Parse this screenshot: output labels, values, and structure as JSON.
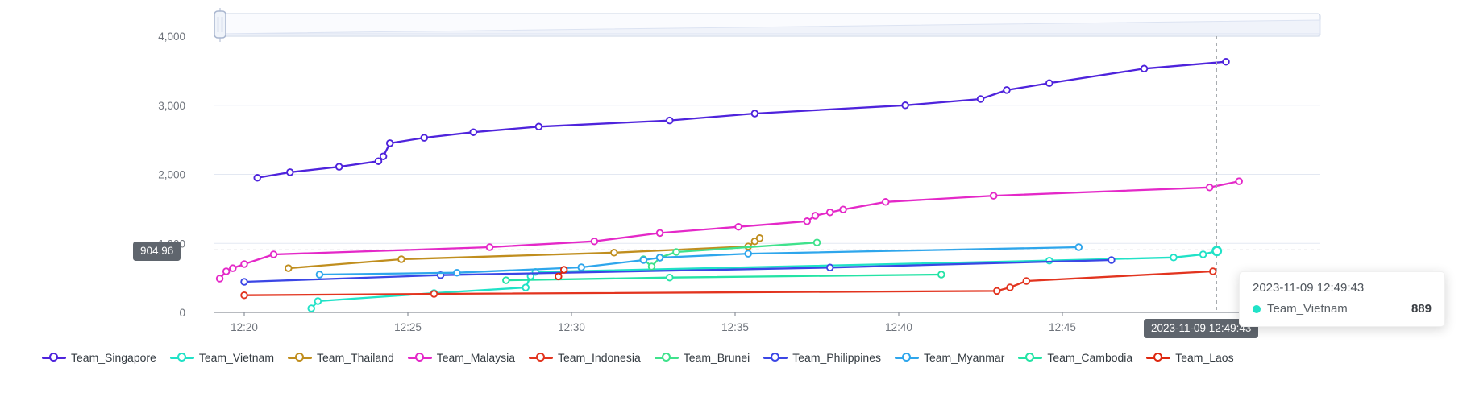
{
  "chart_data": {
    "type": "line",
    "title": "",
    "x_axis": {
      "unit": "time (HH:MM, minutes after 12:00)",
      "tick_minutes": [
        20,
        25,
        30,
        35,
        40,
        45
      ],
      "tick_labels": [
        "12:20",
        "12:25",
        "12:30",
        "12:35",
        "12:40",
        "12:45"
      ]
    },
    "y_axis": {
      "min": 0,
      "max": 4000,
      "ticks": [
        {
          "value": 0,
          "label": "0"
        },
        {
          "value": 1000,
          "label": "1,000"
        },
        {
          "value": 2000,
          "label": "2,000"
        },
        {
          "value": 3000,
          "label": "3,000"
        },
        {
          "value": 4000,
          "label": "4,000"
        }
      ]
    },
    "legend_position": "bottom",
    "grid": true,
    "series": [
      {
        "name": "Team_Singapore",
        "color": "#4E23DC",
        "points": [
          [
            20.4,
            1950
          ],
          [
            21.4,
            2030
          ],
          [
            22.9,
            2110
          ],
          [
            24.1,
            2190
          ],
          [
            24.25,
            2260
          ],
          [
            24.45,
            2450
          ],
          [
            25.5,
            2530
          ],
          [
            27.0,
            2610
          ],
          [
            29.0,
            2690
          ],
          [
            33.0,
            2780
          ],
          [
            35.6,
            2880
          ],
          [
            40.2,
            3000
          ],
          [
            42.5,
            3090
          ],
          [
            43.3,
            3220
          ],
          [
            44.6,
            3320
          ],
          [
            47.5,
            3530
          ],
          [
            50.0,
            3630
          ]
        ]
      },
      {
        "name": "Team_Vietnam",
        "color": "#20E2C7",
        "points": [
          [
            22.05,
            58
          ],
          [
            22.25,
            163
          ],
          [
            25.8,
            280
          ],
          [
            28.6,
            360
          ],
          [
            28.75,
            525
          ],
          [
            28.9,
            585
          ],
          [
            44.6,
            750
          ],
          [
            48.4,
            795
          ],
          [
            49.3,
            840
          ],
          [
            49.72,
            889
          ]
        ]
      },
      {
        "name": "Team_Thailand",
        "color": "#C08E1E",
        "points": [
          [
            21.35,
            640
          ],
          [
            24.8,
            770
          ],
          [
            31.3,
            865
          ],
          [
            35.4,
            955
          ],
          [
            35.6,
            1030
          ],
          [
            35.75,
            1075
          ]
        ]
      },
      {
        "name": "Team_Malaysia",
        "color": "#E428C8",
        "points": [
          [
            19.25,
            490
          ],
          [
            19.45,
            595
          ],
          [
            19.65,
            640
          ],
          [
            20.0,
            700
          ],
          [
            20.9,
            840
          ],
          [
            27.5,
            945
          ],
          [
            30.7,
            1030
          ],
          [
            32.7,
            1150
          ],
          [
            35.1,
            1240
          ],
          [
            37.2,
            1320
          ],
          [
            37.45,
            1400
          ],
          [
            37.9,
            1450
          ],
          [
            38.3,
            1490
          ],
          [
            39.6,
            1600
          ],
          [
            42.9,
            1690
          ],
          [
            49.5,
            1810
          ],
          [
            50.4,
            1900
          ]
        ]
      },
      {
        "name": "Team_Indonesia",
        "color": "#E2341F",
        "points": [
          [
            20.0,
            248
          ],
          [
            25.8,
            268
          ],
          [
            43.0,
            310
          ],
          [
            43.4,
            362
          ],
          [
            43.9,
            455
          ],
          [
            49.6,
            595
          ]
        ]
      },
      {
        "name": "Team_Brunei",
        "color": "#3FE28C",
        "points": [
          [
            32.2,
            770
          ],
          [
            32.45,
            665
          ],
          [
            32.7,
            793
          ],
          [
            33.2,
            875
          ],
          [
            37.5,
            1012
          ]
        ]
      },
      {
        "name": "Team_Philippines",
        "color": "#3B46E5",
        "points": [
          [
            20.0,
            443
          ],
          [
            26.0,
            540
          ],
          [
            37.9,
            650
          ],
          [
            46.5,
            758
          ]
        ]
      },
      {
        "name": "Team_Myanmar",
        "color": "#2EA6EC",
        "points": [
          [
            22.3,
            548
          ],
          [
            26.5,
            575
          ],
          [
            30.3,
            653
          ],
          [
            32.2,
            758
          ],
          [
            32.7,
            793
          ],
          [
            35.4,
            850
          ],
          [
            45.5,
            945
          ]
        ]
      },
      {
        "name": "Team_Cambodia",
        "color": "#24E3A5",
        "points": [
          [
            28.0,
            465
          ],
          [
            33.0,
            505
          ],
          [
            41.3,
            548
          ]
        ]
      },
      {
        "name": "Team_Laos",
        "color": "#DE2810",
        "points": [
          [
            29.6,
            520
          ],
          [
            29.77,
            618
          ]
        ]
      }
    ],
    "crosshair": {
      "time_min": 49.717,
      "time_label": "2023-11-09 12:49:43",
      "value": 904.96,
      "value_label": "904.96"
    },
    "highlight": {
      "series": "Team_Vietnam",
      "time_min": 49.72,
      "value": 889
    }
  },
  "legend": {
    "items": [
      {
        "label": "Team_Singapore"
      },
      {
        "label": "Team_Vietnam"
      },
      {
        "label": "Team_Thailand"
      },
      {
        "label": "Team_Malaysia"
      },
      {
        "label": "Team_Indonesia"
      },
      {
        "label": "Team_Brunei"
      },
      {
        "label": "Team_Philippines"
      },
      {
        "label": "Team_Myanmar"
      },
      {
        "label": "Team_Cambodia"
      },
      {
        "label": "Team_Laos"
      }
    ]
  },
  "tooltip": {
    "title": "2023-11-09 12:49:43",
    "series_name": "Team_Vietnam",
    "value": "889",
    "dot_color": "#20E2C7"
  },
  "axis_pointer_badges": {
    "y_label": "904.96",
    "x_label": "2023-11-09 12:49:43"
  }
}
